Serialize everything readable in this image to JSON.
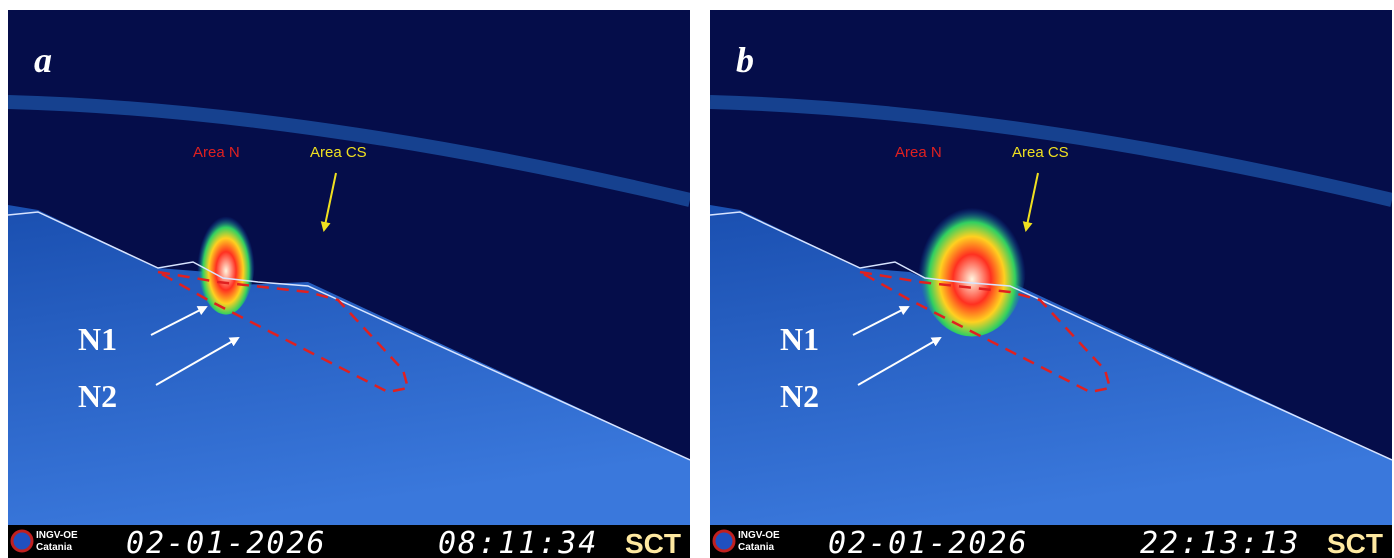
{
  "panels": [
    {
      "label": "a",
      "area_n": "Area N",
      "area_cs": "Area CS",
      "n1": "N1",
      "n2": "N2",
      "logo_top": "INGV-OE",
      "logo_bottom": "Catania",
      "date": "02-01-2026",
      "time": "08:11:34",
      "zone": "SCT"
    },
    {
      "label": "b",
      "area_n": "Area N",
      "area_cs": "Area CS",
      "n1": "N1",
      "n2": "N2",
      "logo_top": "INGV-OE",
      "logo_bottom": "Catania",
      "date": "02-01-2026",
      "time": "22:13:13",
      "zone": "SCT"
    }
  ]
}
